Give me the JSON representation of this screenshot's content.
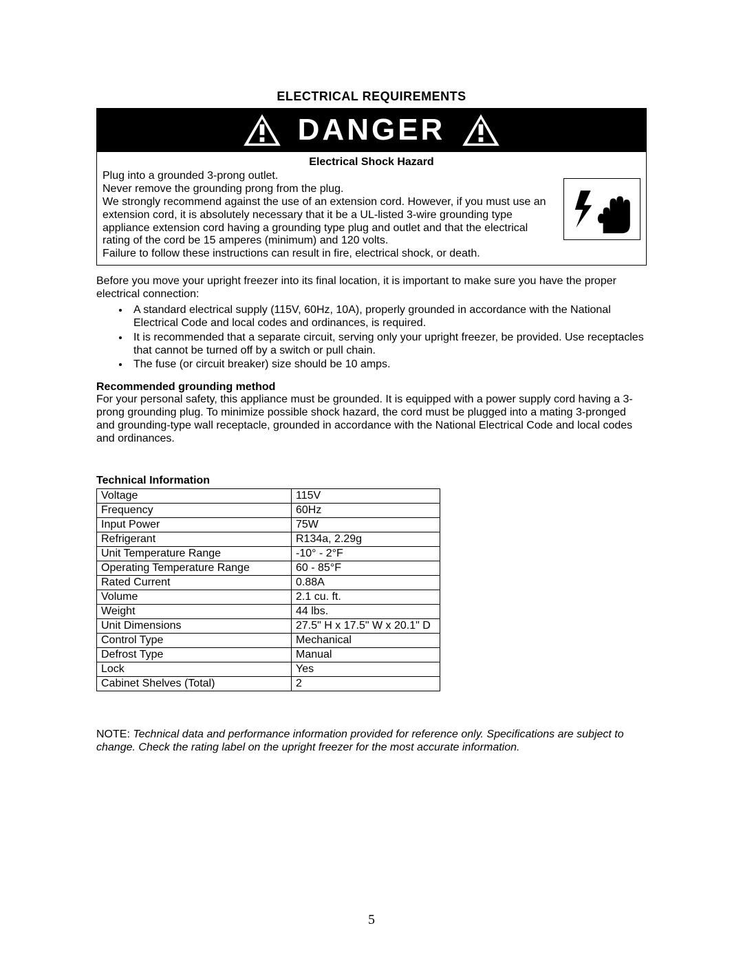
{
  "section_title": "ELECTRICAL REQUIREMENTS",
  "danger_word": "DANGER",
  "hazard": {
    "title": "Electrical Shock Hazard",
    "line1": "Plug into a grounded 3-prong outlet.",
    "line2": "Never remove the grounding prong from the plug.",
    "line3": "We strongly recommend against the use of an extension cord. However, if you must use an extension cord, it is absolutely necessary that it be a UL-listed 3-wire grounding type appliance extension cord having a grounding type plug and outlet and that the electrical rating of the cord be 15 amperes (minimum) and 120 volts.",
    "line4": "Failure to follow these instructions can result in fire, electrical shock, or death."
  },
  "intro_para": "Before you move your upright freezer into its final location, it is important to make sure you have the proper electrical connection:",
  "bullets": {
    "b1": "A standard electrical supply (115V, 60Hz, 10A), properly grounded in accordance with the National Electrical Code and local codes and ordinances, is required.",
    "b2": "It is recommended that a separate circuit, serving only your upright freezer, be provided. Use receptacles that cannot be turned off by a switch or pull chain.",
    "b3": "The fuse (or circuit breaker) size should be 10 amps."
  },
  "grounding": {
    "heading": "Recommended grounding method",
    "para": "For your personal safety, this appliance must be grounded. It is equipped with a power supply cord having a 3-prong grounding plug. To minimize possible shock hazard, the cord must be plugged into a mating 3-pronged and grounding-type wall receptacle, grounded in accordance with the National Electrical Code and local codes and ordinances."
  },
  "tech": {
    "heading": "Technical Information",
    "rows": [
      {
        "k": "Voltage",
        "v": "115V"
      },
      {
        "k": "Frequency",
        "v": "60Hz"
      },
      {
        "k": "Input Power",
        "v": "75W"
      },
      {
        "k": "Refrigerant",
        "v": "R134a, 2.29g"
      },
      {
        "k": "Unit Temperature Range",
        "v": "-10° -  2°F"
      },
      {
        "k": "Operating Temperature Range",
        "v": "60 - 85°F"
      },
      {
        "k": "Rated Current",
        "v": "0.88A"
      },
      {
        "k": "Volume",
        "v": "2.1 cu. ft."
      },
      {
        "k": "Weight",
        "v": "44 lbs."
      },
      {
        "k": "Unit Dimensions",
        "v": "27.5\" H x 17.5\" W x 20.1\" D"
      },
      {
        "k": "Control Type",
        "v": "Mechanical"
      },
      {
        "k": "Defrost Type",
        "v": "Manual"
      },
      {
        "k": "Lock",
        "v": "Yes"
      },
      {
        "k": "Cabinet Shelves (Total)",
        "v": "2"
      }
    ]
  },
  "note_label": "NOTE: ",
  "note_body": "Technical data and performance information provided for reference only. Specifications are subject to change. Check the rating label on the upright freezer for the most accurate information.",
  "page_number": "5",
  "colors": {
    "page_bg": "#ffffff",
    "text": "#000000",
    "banner_bg": "#000000",
    "banner_fg": "#ffffff",
    "border": "#000000"
  },
  "fonts": {
    "body_family": "Arial",
    "body_size_pt": 12,
    "title_size_pt": 13,
    "danger_size_pt": 33,
    "pagenum_family": "Times New Roman"
  }
}
